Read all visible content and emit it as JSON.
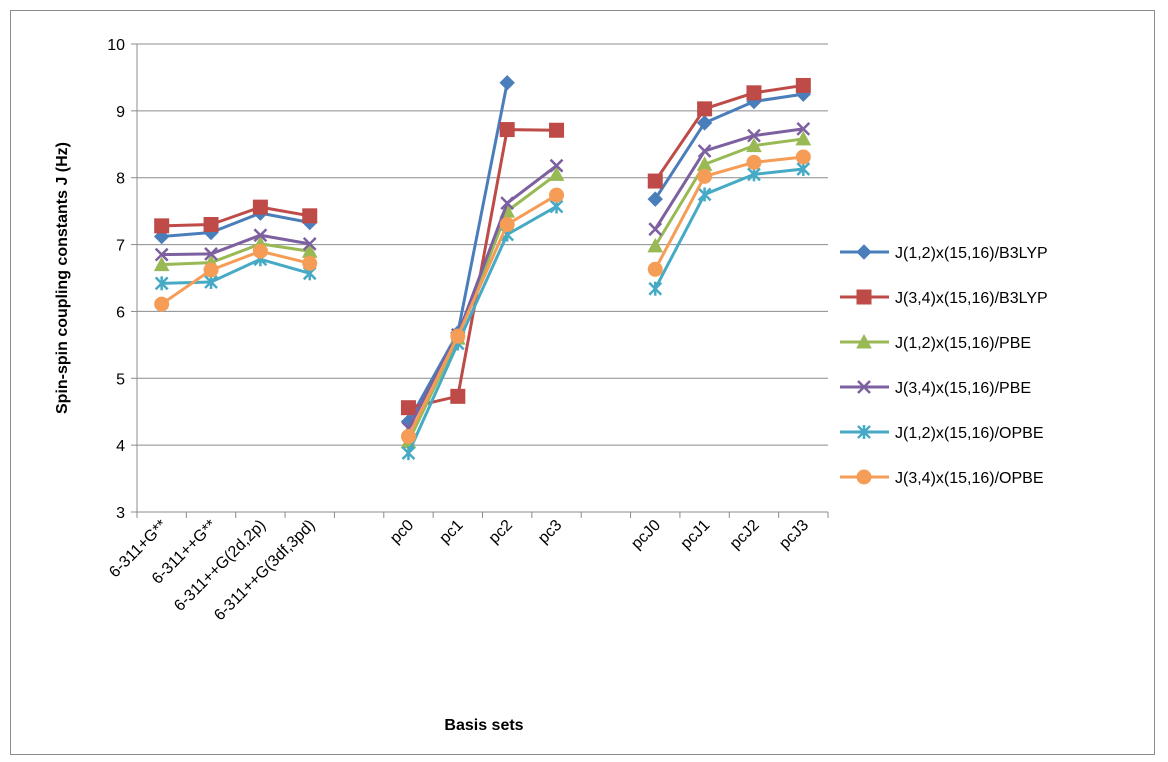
{
  "chart_data": {
    "type": "line",
    "title": "",
    "xlabel": "Basis sets",
    "ylabel": "Spin-spin coupling constants J (Hz)",
    "ylim": [
      3,
      10
    ],
    "y_ticks": [
      "3",
      "4",
      "5",
      "6",
      "7",
      "8",
      "9",
      "10"
    ],
    "grid": "horizontal",
    "legend_position": "right",
    "categories": [
      "6-311+G**",
      "6-311++G**",
      "6-311++G(2d,2p)",
      "6-311++G(3df,3pd)",
      "",
      "pc0",
      "pc1",
      "pc2",
      "pc3",
      "",
      "pcJ0",
      "pcJ1",
      "pcJ2",
      "pcJ3"
    ],
    "series": [
      {
        "name": "J(1,2)x(15,16)/B3LYP",
        "color": "#4a7ebb",
        "marker": "diamond",
        "values": [
          7.12,
          7.18,
          7.47,
          7.33,
          null,
          4.35,
          5.68,
          9.42,
          null,
          null,
          7.68,
          8.82,
          9.14,
          9.25
        ]
      },
      {
        "name": "J(3,4)x(15,16)/B3LYP",
        "color": "#be4b48",
        "marker": "square",
        "values": [
          7.28,
          7.3,
          7.56,
          7.43,
          null,
          4.56,
          4.73,
          8.72,
          8.71,
          null,
          7.95,
          9.03,
          9.27,
          9.38
        ]
      },
      {
        "name": "J(1,2)x(15,16)/PBE",
        "color": "#98b954",
        "marker": "triangle",
        "values": [
          6.7,
          6.73,
          7.01,
          6.9,
          null,
          4.05,
          5.6,
          7.5,
          8.05,
          null,
          6.98,
          8.2,
          8.48,
          8.58
        ]
      },
      {
        "name": "J(3,4)x(15,16)/PBE",
        "color": "#7d60a0",
        "marker": "x",
        "values": [
          6.85,
          6.86,
          7.14,
          7.01,
          null,
          4.25,
          5.65,
          7.62,
          8.18,
          null,
          7.23,
          8.4,
          8.63,
          8.73
        ]
      },
      {
        "name": "J(1,2)x(15,16)/OPBE",
        "color": "#46aac5",
        "marker": "asterisk",
        "values": [
          6.42,
          6.44,
          6.78,
          6.57,
          null,
          3.88,
          5.52,
          7.15,
          7.57,
          null,
          6.34,
          7.75,
          8.05,
          8.13
        ]
      },
      {
        "name": "J(3,4)x(15,16)/OPBE",
        "color": "#f59d56",
        "marker": "circle",
        "values": [
          6.11,
          6.62,
          6.9,
          6.72,
          null,
          4.13,
          5.63,
          7.3,
          7.74,
          null,
          6.63,
          8.02,
          8.23,
          8.31
        ]
      }
    ]
  }
}
